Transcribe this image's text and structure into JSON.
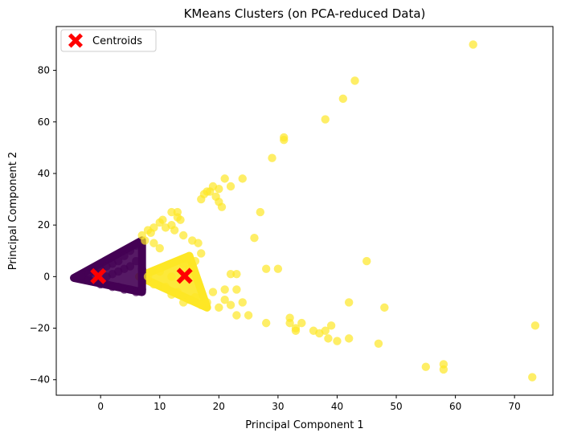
{
  "chart_data": {
    "type": "scatter",
    "title": "KMeans Clusters (on PCA-reduced Data)",
    "xlabel": "Principal Component 1",
    "ylabel": "Principal Component 2",
    "xlim": [
      -7.5,
      76.5
    ],
    "ylim": [
      -46,
      97
    ],
    "xticks": [
      0,
      10,
      20,
      30,
      40,
      50,
      60,
      70
    ],
    "yticks": [
      -40,
      -20,
      0,
      20,
      40,
      60,
      80
    ],
    "grid": false,
    "legend": {
      "location": "upper left",
      "entries": [
        "Centroids"
      ]
    },
    "colors": {
      "cluster_0": "#440154",
      "cluster_1": "#fde725",
      "centroid": "#ff0000"
    },
    "marker_alpha": 0.7,
    "clusters": [
      {
        "label": 0,
        "dense_region": {
          "shape": "wedge",
          "apex": [
            -4.5,
            -0.5
          ],
          "upper_edge_to": [
            7.0,
            14.0
          ],
          "lower_edge_to": [
            7.0,
            -6.0
          ]
        },
        "points": [
          [
            -4,
            0
          ],
          [
            -3,
            0.5
          ],
          [
            -2,
            1
          ],
          [
            -2,
            -1
          ],
          [
            -1,
            2
          ],
          [
            -1,
            -2
          ],
          [
            0,
            3
          ],
          [
            0,
            -3
          ],
          [
            1,
            4
          ],
          [
            1,
            0
          ],
          [
            1,
            -3
          ],
          [
            2,
            5
          ],
          [
            2,
            1
          ],
          [
            2,
            -4
          ],
          [
            3,
            6
          ],
          [
            3,
            2
          ],
          [
            3,
            -4
          ],
          [
            4,
            8
          ],
          [
            4,
            3
          ],
          [
            4,
            -5
          ],
          [
            5,
            10
          ],
          [
            5,
            4
          ],
          [
            5,
            -5
          ],
          [
            6,
            12
          ],
          [
            6,
            6
          ],
          [
            6,
            -6
          ],
          [
            7,
            13
          ],
          [
            7,
            3
          ],
          [
            7,
            -5
          ]
        ]
      },
      {
        "label": 1,
        "dense_region": {
          "shape": "wedge",
          "apex": [
            6.5,
            0.0
          ],
          "upper_edge_to": [
            15.0,
            8.0
          ],
          "lower_edge_to": [
            18.0,
            -12.0
          ]
        },
        "points": [
          [
            7,
            16
          ],
          [
            7.5,
            14
          ],
          [
            8,
            18
          ],
          [
            8.5,
            17
          ],
          [
            9,
            13
          ],
          [
            9,
            19
          ],
          [
            10,
            11
          ],
          [
            10,
            21
          ],
          [
            10.5,
            22
          ],
          [
            11,
            19
          ],
          [
            12,
            20
          ],
          [
            12,
            25
          ],
          [
            12.5,
            18
          ],
          [
            13,
            23
          ],
          [
            13,
            25
          ],
          [
            13.5,
            22
          ],
          [
            14,
            16
          ],
          [
            14,
            5
          ],
          [
            14.5,
            7
          ],
          [
            15,
            3
          ],
          [
            15,
            8
          ],
          [
            15.5,
            14
          ],
          [
            16,
            6
          ],
          [
            16.5,
            13
          ],
          [
            17,
            9
          ],
          [
            17,
            30
          ],
          [
            17.5,
            32
          ],
          [
            18,
            33
          ],
          [
            18.5,
            33
          ],
          [
            19,
            35
          ],
          [
            19.5,
            31
          ],
          [
            20,
            29
          ],
          [
            20,
            34
          ],
          [
            20.5,
            27
          ],
          [
            21,
            38
          ],
          [
            22,
            35
          ],
          [
            23,
            1
          ],
          [
            22,
            1
          ],
          [
            21,
            -5
          ],
          [
            23,
            -5
          ],
          [
            23,
            -15
          ],
          [
            24,
            -10
          ],
          [
            24,
            38
          ],
          [
            25,
            -15
          ],
          [
            26,
            15
          ],
          [
            27,
            25
          ],
          [
            28,
            3
          ],
          [
            28,
            -18
          ],
          [
            29,
            46
          ],
          [
            30,
            3
          ],
          [
            31,
            53
          ],
          [
            31,
            54
          ],
          [
            32,
            -16
          ],
          [
            32,
            -18
          ],
          [
            33,
            -20
          ],
          [
            33,
            -21
          ],
          [
            34,
            -18
          ],
          [
            36,
            -21
          ],
          [
            37,
            -22
          ],
          [
            38,
            -21
          ],
          [
            38.5,
            -24
          ],
          [
            39,
            -19
          ],
          [
            40,
            -25
          ],
          [
            38,
            61
          ],
          [
            41,
            69
          ],
          [
            42,
            -24
          ],
          [
            43,
            76
          ],
          [
            42,
            -10
          ],
          [
            45,
            6
          ],
          [
            47,
            -26
          ],
          [
            48,
            -12
          ],
          [
            55,
            -35
          ],
          [
            58,
            -34
          ],
          [
            58,
            -36
          ],
          [
            63,
            90
          ],
          [
            73,
            -39
          ],
          [
            73.5,
            -19
          ],
          [
            8,
            0
          ],
          [
            9,
            -3
          ],
          [
            10,
            2
          ],
          [
            11,
            -4
          ],
          [
            12,
            0
          ],
          [
            13,
            -6
          ],
          [
            16,
            -8
          ],
          [
            18,
            -10
          ],
          [
            20,
            -12
          ],
          [
            22,
            -11
          ],
          [
            19,
            -6
          ],
          [
            17,
            -11
          ],
          [
            15,
            -9
          ],
          [
            21,
            -9
          ],
          [
            12,
            -7
          ],
          [
            14,
            -10
          ]
        ]
      }
    ],
    "centroids": [
      [
        -0.4,
        0.2
      ],
      [
        14.2,
        0.3
      ]
    ]
  }
}
